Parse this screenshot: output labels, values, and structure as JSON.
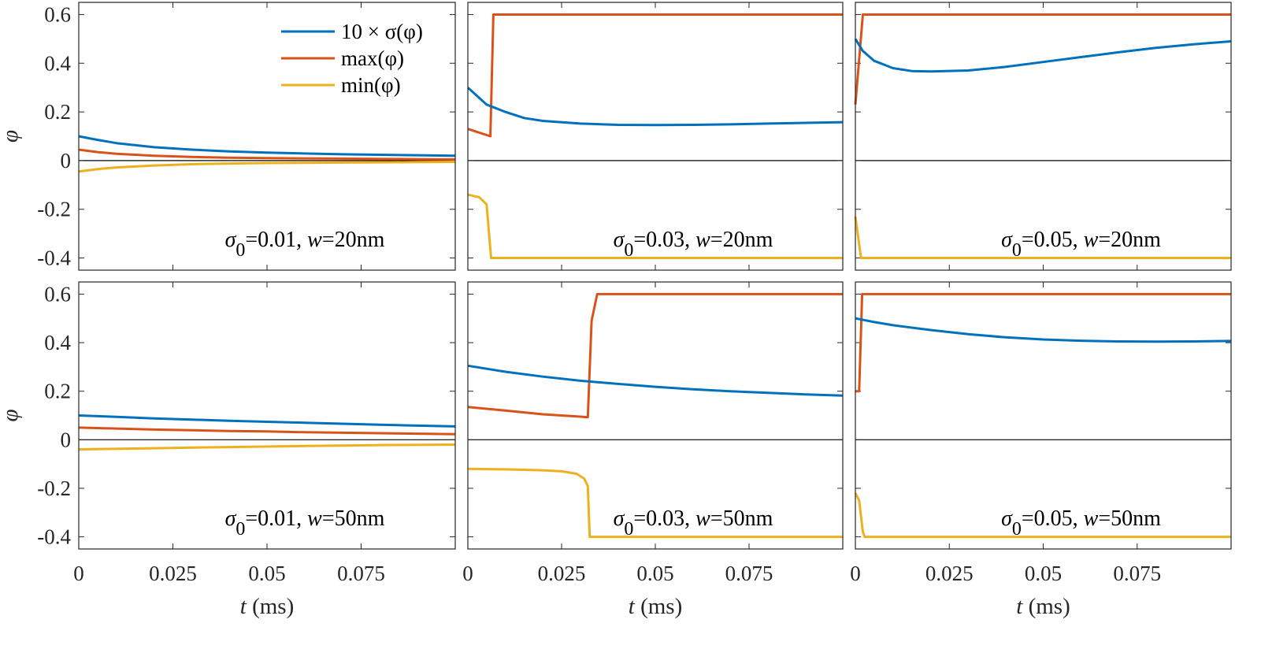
{
  "chart_data": {
    "type": "line",
    "grid": false,
    "xlim": [
      0,
      0.1
    ],
    "ylim": [
      -0.45,
      0.65
    ],
    "x_ticks": [
      0,
      0.025,
      0.05,
      0.075
    ],
    "x_tick_labels": [
      "0",
      "0.025",
      "0.05",
      "0.075"
    ],
    "y_ticks": [
      0.6,
      0.4,
      0.2,
      0,
      -0.2,
      -0.4
    ],
    "y_tick_labels": [
      "0.6",
      "0.4",
      "0.2",
      "0",
      "-0.2",
      "-0.4"
    ],
    "xlabel_italic": "t",
    "xlabel_unit": " (ms)",
    "ylabel": "φ",
    "series_colors": {
      "sigma10": "#0072bd",
      "max": "#d95319",
      "min": "#edb120"
    },
    "legend": {
      "placement": "top-right of first panel",
      "entries": [
        {
          "key": "sigma10",
          "label": "10 × σ(φ)"
        },
        {
          "key": "max",
          "label": "max(φ)"
        },
        {
          "key": "min",
          "label": "min(φ)"
        }
      ]
    },
    "panels": [
      {
        "annotation": {
          "sigma": "σ",
          "sub": "0",
          "value": "=0.01, ",
          "w": "w",
          "wval": "=20nm"
        },
        "series": {
          "sigma10": {
            "x": [
              0,
              0.005,
              0.01,
              0.02,
              0.03,
              0.04,
              0.05,
              0.06,
              0.07,
              0.08,
              0.09,
              0.1
            ],
            "y": [
              0.1,
              0.085,
              0.072,
              0.055,
              0.045,
              0.038,
              0.033,
              0.029,
              0.026,
              0.024,
              0.022,
              0.02
            ]
          },
          "max": {
            "x": [
              0,
              0.005,
              0.01,
              0.02,
              0.03,
              0.04,
              0.05,
              0.06,
              0.07,
              0.08,
              0.09,
              0.1
            ],
            "y": [
              0.045,
              0.035,
              0.028,
              0.02,
              0.015,
              0.012,
              0.01,
              0.009,
              0.008,
              0.007,
              0.006,
              0.005
            ]
          },
          "min": {
            "x": [
              0,
              0.005,
              0.01,
              0.02,
              0.03,
              0.04,
              0.05,
              0.06,
              0.07,
              0.08,
              0.09,
              0.1
            ],
            "y": [
              -0.045,
              -0.035,
              -0.028,
              -0.02,
              -0.015,
              -0.012,
              -0.01,
              -0.009,
              -0.008,
              -0.007,
              -0.006,
              -0.005
            ]
          }
        }
      },
      {
        "annotation": {
          "sigma": "σ",
          "sub": "0",
          "value": "=0.03, ",
          "w": "w",
          "wval": "=20nm"
        },
        "series": {
          "sigma10": {
            "x": [
              0,
              0.005,
              0.01,
              0.015,
              0.02,
              0.03,
              0.04,
              0.05,
              0.06,
              0.07,
              0.08,
              0.09,
              0.1
            ],
            "y": [
              0.3,
              0.23,
              0.2,
              0.175,
              0.163,
              0.152,
              0.147,
              0.146,
              0.147,
              0.149,
              0.152,
              0.155,
              0.158
            ]
          },
          "max": {
            "x": [
              0,
              0.006,
              0.0068,
              0.1
            ],
            "y": [
              0.13,
              0.1,
              0.6,
              0.6
            ]
          },
          "min": {
            "x": [
              0,
              0.003,
              0.005,
              0.0062,
              0.1
            ],
            "y": [
              -0.14,
              -0.15,
              -0.18,
              -0.4,
              -0.4
            ]
          }
        }
      },
      {
        "annotation": {
          "sigma": "σ",
          "sub": "0",
          "value": "=0.05, ",
          "w": "w",
          "wval": "=20nm"
        },
        "series": {
          "sigma10": {
            "x": [
              0,
              0.002,
              0.005,
              0.01,
              0.015,
              0.02,
              0.03,
              0.04,
              0.05,
              0.06,
              0.07,
              0.08,
              0.09,
              0.1
            ],
            "y": [
              0.5,
              0.45,
              0.41,
              0.38,
              0.368,
              0.366,
              0.37,
              0.385,
              0.405,
              0.425,
              0.445,
              0.463,
              0.478,
              0.49
            ]
          },
          "max": {
            "x": [
              0,
              0.002,
              0.1
            ],
            "y": [
              0.23,
              0.6,
              0.6
            ]
          },
          "min": {
            "x": [
              0,
              0.0015,
              0.1
            ],
            "y": [
              -0.23,
              -0.4,
              -0.4
            ]
          }
        }
      },
      {
        "annotation": {
          "sigma": "σ",
          "sub": "0",
          "value": "=0.01, ",
          "w": "w",
          "wval": "=50nm"
        },
        "series": {
          "sigma10": {
            "x": [
              0,
              0.01,
              0.02,
              0.03,
              0.04,
              0.05,
              0.06,
              0.07,
              0.08,
              0.09,
              0.1
            ],
            "y": [
              0.1,
              0.094,
              0.088,
              0.083,
              0.078,
              0.074,
              0.07,
              0.066,
              0.062,
              0.058,
              0.055
            ]
          },
          "max": {
            "x": [
              0,
              0.01,
              0.02,
              0.03,
              0.04,
              0.05,
              0.06,
              0.07,
              0.08,
              0.09,
              0.1
            ],
            "y": [
              0.05,
              0.046,
              0.042,
              0.039,
              0.036,
              0.034,
              0.031,
              0.029,
              0.027,
              0.025,
              0.023
            ]
          },
          "min": {
            "x": [
              0,
              0.02,
              0.04,
              0.06,
              0.08,
              0.1
            ],
            "y": [
              -0.04,
              -0.035,
              -0.03,
              -0.026,
              -0.022,
              -0.02
            ]
          }
        }
      },
      {
        "annotation": {
          "sigma": "σ",
          "sub": "0",
          "value": "=0.03, ",
          "w": "w",
          "wval": "=50nm"
        },
        "series": {
          "sigma10": {
            "x": [
              0,
              0.01,
              0.02,
              0.03,
              0.04,
              0.05,
              0.06,
              0.07,
              0.08,
              0.09,
              0.1
            ],
            "y": [
              0.305,
              0.28,
              0.26,
              0.243,
              0.23,
              0.218,
              0.208,
              0.2,
              0.193,
              0.187,
              0.182
            ]
          },
          "max": {
            "x": [
              0,
              0.01,
              0.02,
              0.03,
              0.032,
              0.033,
              0.0345,
              0.1
            ],
            "y": [
              0.135,
              0.12,
              0.105,
              0.095,
              0.093,
              0.49,
              0.6,
              0.6
            ]
          },
          "min": {
            "x": [
              0,
              0.01,
              0.02,
              0.025,
              0.029,
              0.031,
              0.032,
              0.0325,
              0.1
            ],
            "y": [
              -0.12,
              -0.122,
              -0.126,
              -0.13,
              -0.14,
              -0.16,
              -0.19,
              -0.4,
              -0.4
            ]
          }
        }
      },
      {
        "annotation": {
          "sigma": "σ",
          "sub": "0",
          "value": "=0.05, ",
          "w": "w",
          "wval": "=50nm"
        },
        "series": {
          "sigma10": {
            "x": [
              0,
              0.005,
              0.01,
              0.02,
              0.03,
              0.04,
              0.05,
              0.06,
              0.07,
              0.08,
              0.09,
              0.1
            ],
            "y": [
              0.5,
              0.485,
              0.472,
              0.452,
              0.435,
              0.422,
              0.413,
              0.408,
              0.405,
              0.404,
              0.405,
              0.407
            ]
          },
          "max": {
            "x": [
              0,
              0.001,
              0.0018,
              0.0022,
              0.1
            ],
            "y": [
              0.2,
              0.2,
              0.6,
              0.6,
              0.6
            ]
          },
          "min": {
            "x": [
              0,
              0.001,
              0.002,
              0.0025,
              0.1
            ],
            "y": [
              -0.22,
              -0.25,
              -0.38,
              -0.4,
              -0.4
            ]
          }
        }
      }
    ]
  }
}
